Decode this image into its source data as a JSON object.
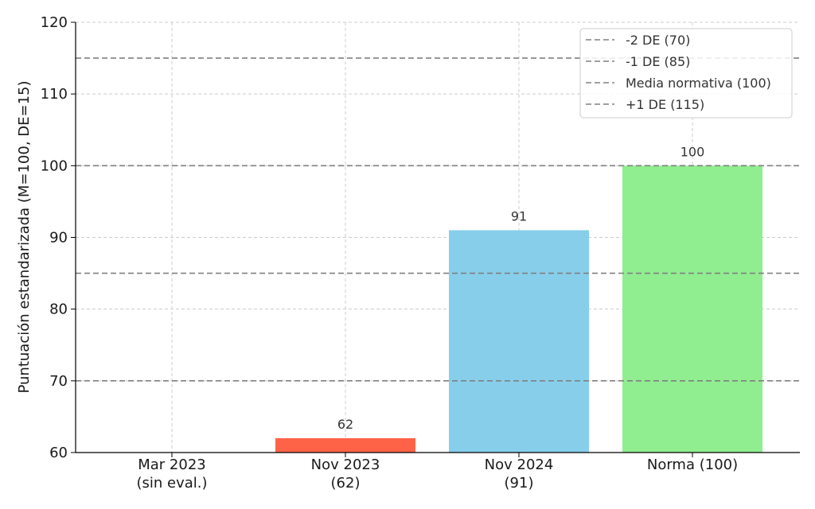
{
  "chart_data": {
    "type": "bar",
    "title": "",
    "xlabel": "",
    "ylabel": "Puntuación estandarizada (M=100, DE=15)",
    "ylim": [
      60,
      120
    ],
    "yticks": [
      60,
      70,
      80,
      90,
      100,
      110,
      120
    ],
    "grid": true,
    "legend_position": "top-right",
    "categories": [
      [
        "Mar 2023",
        "(sin eval.)"
      ],
      [
        "Nov 2023",
        "(62)"
      ],
      [
        "Nov 2024",
        "(91)"
      ],
      [
        "Norma (100)"
      ]
    ],
    "values": [
      null,
      62,
      91,
      100
    ],
    "value_labels": [
      "",
      "62",
      "91",
      "100"
    ],
    "bar_colors": [
      "#ffffff",
      "#ff6347",
      "#87ceeb",
      "#90ee90"
    ],
    "reference_lines": [
      {
        "label": "-2 DE (70)",
        "value": 70
      },
      {
        "label": "-1 DE (85)",
        "value": 85
      },
      {
        "label": "Media normativa (100)",
        "value": 100
      },
      {
        "label": "+1 DE (115)",
        "value": 115
      }
    ],
    "reference_line_color": "#808080"
  }
}
